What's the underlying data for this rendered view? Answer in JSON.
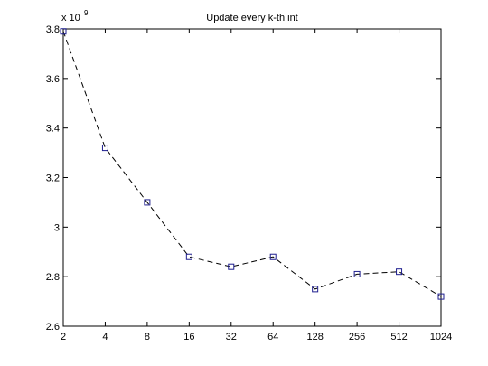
{
  "chart_data": {
    "type": "line",
    "title": "Update every k-th int",
    "xlabel": "",
    "ylabel": "",
    "x_tick_labels": [
      "2",
      "4",
      "8",
      "16",
      "32",
      "64",
      "128",
      "256",
      "512",
      "1024"
    ],
    "y_tick_labels": [
      "2.6",
      "2.8",
      "3",
      "3.2",
      "3.4",
      "3.6",
      "3.8"
    ],
    "y_ticks": [
      2.6,
      2.8,
      3.0,
      3.2,
      3.4,
      3.6,
      3.8
    ],
    "ylim": [
      2.6,
      3.8
    ],
    "y_exponent_prefix": "x 10",
    "y_exponent": "9",
    "x_scale": "log2",
    "grid": false,
    "series": [
      {
        "x": [
          2,
          4,
          8,
          16,
          32,
          64,
          128,
          256,
          512,
          1024
        ],
        "values": [
          3.79,
          3.32,
          3.1,
          2.88,
          2.84,
          2.88,
          2.75,
          2.81,
          2.82,
          2.72
        ],
        "color": "#1f1f8f",
        "line_style": "dashed",
        "marker": "square"
      }
    ]
  }
}
